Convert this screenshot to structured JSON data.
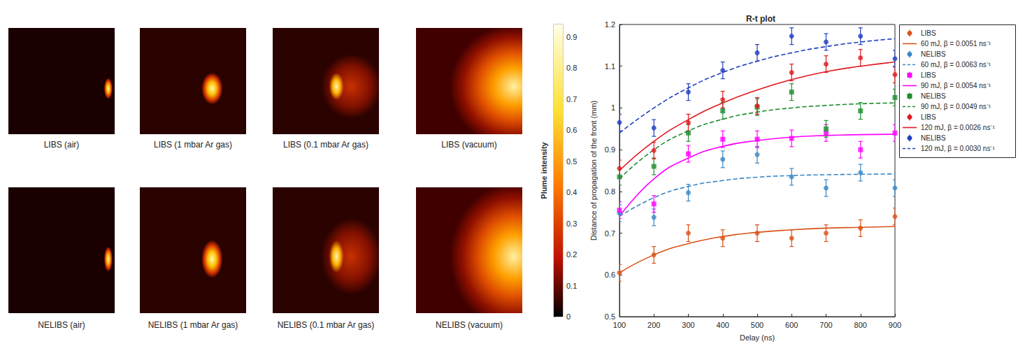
{
  "images": [
    {
      "label": "LIBS (air)"
    },
    {
      "label": "LIBS (1 mbar Ar gas)"
    },
    {
      "label": "LIBS (0.1 mbar Ar gas)"
    },
    {
      "label": "LIBS (vacuum)"
    },
    {
      "label": "NELIBS (air)"
    },
    {
      "label": "NELIBS (1 mbar Ar gas)"
    },
    {
      "label": "NELIBS (0.1 mbar Ar gas)"
    },
    {
      "label": "NELIBS (vacuum)"
    }
  ],
  "chart_data": [
    {
      "type": "colorbar",
      "ylabel": "Plume intensity",
      "ylim": [
        0,
        0.94
      ],
      "yticks": [
        0,
        0.1,
        0.2,
        0.3,
        0.4,
        0.5,
        0.6,
        0.7,
        0.8,
        0.9
      ]
    },
    {
      "type": "scatter",
      "title": "R-t plot",
      "xlabel": "Delay (ns)",
      "ylabel": "Distance of propagation of the front (mm)",
      "x": [
        100,
        200,
        300,
        400,
        500,
        600,
        700,
        800,
        900
      ],
      "xlim": [
        100,
        900
      ],
      "xticks": [
        100,
        200,
        300,
        400,
        500,
        600,
        700,
        800,
        900
      ],
      "ylim": [
        0.5,
        1.2
      ],
      "yticks": [
        0.5,
        0.6,
        0.7,
        0.8,
        0.9,
        1,
        1.1,
        1.2
      ],
      "grid": false,
      "legend": "right",
      "series": [
        {
          "name": "LIBS",
          "type": "scatter",
          "marker": "circle",
          "color": "#d95319",
          "values": [
            0.605,
            0.648,
            0.7,
            0.688,
            0.7,
            0.688,
            0.7,
            0.712,
            0.74
          ],
          "errors": [
            0.02,
            0.02,
            0.02,
            0.02,
            0.02,
            0.02,
            0.02,
            0.02,
            0.02
          ]
        },
        {
          "name": "60 mJ, β = 0.0051 ns⁻¹",
          "type": "line",
          "line_style": "solid",
          "color": "#d95319",
          "values": [
            0.605,
            0.648,
            0.675,
            0.692,
            0.702,
            0.708,
            0.712,
            0.714,
            0.716
          ]
        },
        {
          "name": "NELIBS",
          "type": "scatter",
          "marker": "circle",
          "color": "#3b87c4",
          "values": [
            0.748,
            0.738,
            0.797,
            0.877,
            0.888,
            0.835,
            0.808,
            0.845,
            0.808
          ],
          "errors": [
            0.02,
            0.02,
            0.02,
            0.02,
            0.02,
            0.02,
            0.02,
            0.02,
            0.02
          ]
        },
        {
          "name": "60 mJ, β = 0.0063 ns⁻¹",
          "type": "line",
          "line_style": "dashed",
          "color": "#3b87c4",
          "values": [
            0.74,
            0.785,
            0.812,
            0.826,
            0.834,
            0.838,
            0.84,
            0.841,
            0.842
          ]
        },
        {
          "name": "LIBS",
          "type": "scatter",
          "marker": "square",
          "color": "#ff00ff",
          "values": [
            0.755,
            0.77,
            0.89,
            0.925,
            0.925,
            0.927,
            0.94,
            0.9,
            0.94
          ],
          "errors": [
            0.02,
            0.02,
            0.02,
            0.02,
            0.02,
            0.02,
            0.02,
            0.02,
            0.02
          ]
        },
        {
          "name": "90 mJ, β = 0.0054 ns⁻¹",
          "type": "line",
          "line_style": "solid",
          "color": "#ff00ff",
          "values": [
            0.74,
            0.83,
            0.88,
            0.908,
            0.922,
            0.93,
            0.934,
            0.936,
            0.937
          ]
        },
        {
          "name": "NELIBS",
          "type": "scatter",
          "marker": "square",
          "color": "#1e8c2e",
          "values": [
            0.835,
            0.86,
            0.94,
            0.993,
            1.002,
            1.038,
            0.95,
            0.993,
            1.025
          ],
          "errors": [
            0.02,
            0.02,
            0.02,
            0.02,
            0.02,
            0.02,
            0.02,
            0.02,
            0.02
          ]
        },
        {
          "name": "90 mJ, β = 0.0049 ns⁻¹",
          "type": "line",
          "line_style": "dashed",
          "color": "#1e8c2e",
          "values": [
            0.83,
            0.9,
            0.945,
            0.973,
            0.99,
            1.0,
            1.006,
            1.01,
            1.012
          ]
        },
        {
          "name": "LIBS",
          "type": "scatter",
          "marker": "circle",
          "color": "#e0191f",
          "values": [
            0.855,
            0.898,
            0.965,
            1.02,
            1.005,
            1.085,
            1.105,
            1.12,
            1.08
          ],
          "errors": [
            0.02,
            0.02,
            0.02,
            0.02,
            0.02,
            0.02,
            0.02,
            0.02,
            0.02
          ]
        },
        {
          "name": "120 mJ, β = 0.0026 ns⁻¹",
          "type": "line",
          "line_style": "solid",
          "color": "#e0191f",
          "values": [
            0.85,
            0.92,
            0.972,
            1.012,
            1.043,
            1.068,
            1.087,
            1.1,
            1.11
          ]
        },
        {
          "name": "NELIBS",
          "type": "scatter",
          "marker": "circle",
          "color": "#1f3fbf",
          "values": [
            0.965,
            0.952,
            1.038,
            1.09,
            1.132,
            1.172,
            1.158,
            1.172,
            1.118
          ],
          "errors": [
            0.02,
            0.02,
            0.02,
            0.02,
            0.02,
            0.02,
            0.02,
            0.02,
            0.02
          ]
        },
        {
          "name": "120 mJ, β = 0.0030 ns⁻¹",
          "type": "line",
          "line_style": "dashed",
          "color": "#1f3fbf",
          "values": [
            0.94,
            1.0,
            1.048,
            1.085,
            1.112,
            1.132,
            1.147,
            1.158,
            1.166
          ]
        }
      ]
    }
  ]
}
